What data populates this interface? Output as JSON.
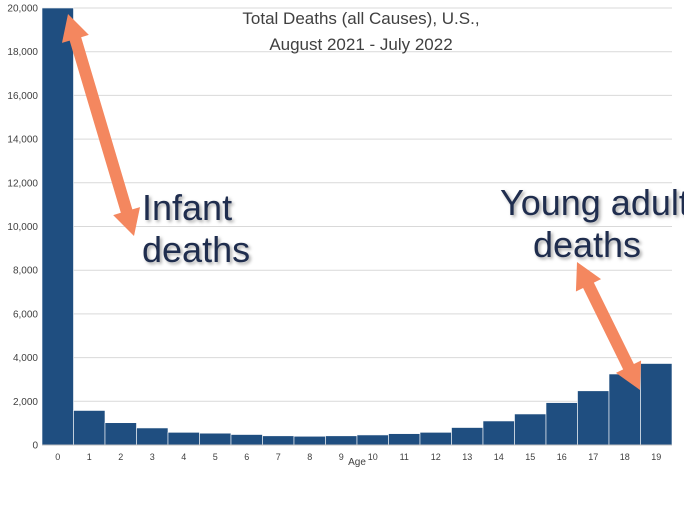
{
  "chart_data": {
    "type": "bar",
    "title_lines": [
      "Total Deaths (all Causes), U.S.,",
      "August 2021 - July 2022"
    ],
    "xlabel": "Age",
    "ylabel": "",
    "ylim": [
      0,
      20000
    ],
    "yticks": [
      "0",
      "2,000",
      "4,000",
      "6,000",
      "8,000",
      "10,000",
      "12,000",
      "14,000",
      "16,000",
      "18,000",
      "20,000"
    ],
    "categories": [
      "0",
      "1",
      "2",
      "3",
      "4",
      "5",
      "6",
      "7",
      "8",
      "9",
      "10",
      "11",
      "12",
      "13",
      "14",
      "15",
      "16",
      "17",
      "18",
      "19"
    ],
    "values": [
      20000,
      1580,
      1020,
      780,
      580,
      540,
      480,
      420,
      400,
      420,
      460,
      520,
      580,
      800,
      1100,
      1420,
      1940,
      2480,
      3250,
      3730
    ],
    "bar_color": "#1f4e80",
    "arrow_color": "#f4875f",
    "grid": true,
    "annotations": {
      "infant": [
        "Infant",
        "deaths"
      ],
      "young_adult": [
        "Young adult",
        "deaths"
      ]
    }
  }
}
